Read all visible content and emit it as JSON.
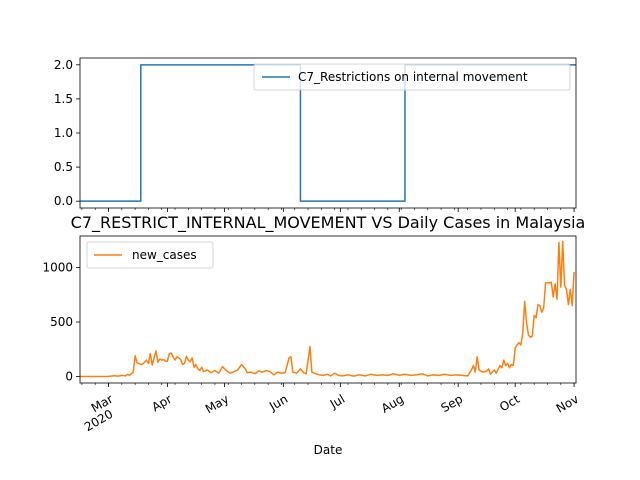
{
  "chart_data": [
    {
      "type": "line",
      "title": "",
      "xlabel": "",
      "ylabel": "",
      "x_range": [
        "2020-02-15",
        "2020-11-02"
      ],
      "ylim": [
        -0.1,
        2.1
      ],
      "yticks": [
        "0.0",
        "0.5",
        "1.0",
        "1.5",
        "2.0"
      ],
      "legend": "top-right",
      "grid": false,
      "series": [
        {
          "name": "C7_Restrictions on internal movement",
          "color": "#1f77b4",
          "points": [
            [
              "2020-02-15",
              0
            ],
            [
              "2020-03-18",
              0
            ],
            [
              "2020-03-18",
              2
            ],
            [
              "2020-06-10",
              2
            ],
            [
              "2020-06-10",
              0
            ],
            [
              "2020-08-04",
              0
            ],
            [
              "2020-08-04",
              2
            ],
            [
              "2020-11-02",
              2
            ]
          ]
        }
      ]
    },
    {
      "type": "line",
      "title": "C7_RESTRICT_INTERNAL_MOVEMENT VS Daily Cases in Malaysia",
      "xlabel": "Date",
      "ylabel": "",
      "x_range": [
        "2020-02-15",
        "2020-11-02"
      ],
      "ylim": [
        -60,
        1290
      ],
      "yticks": [
        "0",
        "500",
        "1000"
      ],
      "xticks": [
        {
          "date": "2020-03-01",
          "label": "Mar",
          "label2": "2020"
        },
        {
          "date": "2020-04-01",
          "label": "Apr"
        },
        {
          "date": "2020-05-01",
          "label": "May"
        },
        {
          "date": "2020-06-01",
          "label": "Jun"
        },
        {
          "date": "2020-07-01",
          "label": "Jul"
        },
        {
          "date": "2020-08-01",
          "label": "Aug"
        },
        {
          "date": "2020-09-01",
          "label": "Sep"
        },
        {
          "date": "2020-10-01",
          "label": "Oct"
        },
        {
          "date": "2020-11-01",
          "label": "Nov"
        }
      ],
      "legend": "top-left",
      "grid": false,
      "series": [
        {
          "name": "new_cases",
          "color": "#ff7f0e",
          "points": [
            [
              "2020-02-15",
              0
            ],
            [
              "2020-02-25",
              0
            ],
            [
              "2020-03-01",
              1
            ],
            [
              "2020-03-04",
              7
            ],
            [
              "2020-03-06",
              3
            ],
            [
              "2020-03-08",
              10
            ],
            [
              "2020-03-10",
              5
            ],
            [
              "2020-03-11",
              20
            ],
            [
              "2020-03-12",
              10
            ],
            [
              "2020-03-13",
              25
            ],
            [
              "2020-03-14",
              40
            ],
            [
              "2020-03-15",
              190
            ],
            [
              "2020-03-16",
              125
            ],
            [
              "2020-03-17",
              120
            ],
            [
              "2020-03-18",
              110
            ],
            [
              "2020-03-19",
              115
            ],
            [
              "2020-03-20",
              130
            ],
            [
              "2020-03-21",
              150
            ],
            [
              "2020-03-22",
              120
            ],
            [
              "2020-03-23",
              210
            ],
            [
              "2020-03-24",
              105
            ],
            [
              "2020-03-25",
              170
            ],
            [
              "2020-03-26",
              235
            ],
            [
              "2020-03-27",
              130
            ],
            [
              "2020-03-28",
              160
            ],
            [
              "2020-03-29",
              150
            ],
            [
              "2020-03-30",
              155
            ],
            [
              "2020-03-31",
              140
            ],
            [
              "2020-04-01",
              140
            ],
            [
              "2020-04-02",
              210
            ],
            [
              "2020-04-03",
              215
            ],
            [
              "2020-04-04",
              180
            ],
            [
              "2020-04-05",
              150
            ],
            [
              "2020-04-06",
              180
            ],
            [
              "2020-04-07",
              170
            ],
            [
              "2020-04-08",
              155
            ],
            [
              "2020-04-09",
              110
            ],
            [
              "2020-04-10",
              120
            ],
            [
              "2020-04-11",
              185
            ],
            [
              "2020-04-12",
              150
            ],
            [
              "2020-04-13",
              135
            ],
            [
              "2020-04-14",
              170
            ],
            [
              "2020-04-15",
              85
            ],
            [
              "2020-04-16",
              110
            ],
            [
              "2020-04-17",
              70
            ],
            [
              "2020-04-18",
              55
            ],
            [
              "2020-04-19",
              85
            ],
            [
              "2020-04-20",
              45
            ],
            [
              "2020-04-22",
              60
            ],
            [
              "2020-04-24",
              35
            ],
            [
              "2020-04-26",
              55
            ],
            [
              "2020-04-28",
              30
            ],
            [
              "2020-04-30",
              90
            ],
            [
              "2020-05-02",
              55
            ],
            [
              "2020-05-04",
              30
            ],
            [
              "2020-05-06",
              45
            ],
            [
              "2020-05-08",
              60
            ],
            [
              "2020-05-10",
              110
            ],
            [
              "2020-05-12",
              70
            ],
            [
              "2020-05-13",
              35
            ],
            [
              "2020-05-15",
              40
            ],
            [
              "2020-05-17",
              25
            ],
            [
              "2020-05-19",
              50
            ],
            [
              "2020-05-21",
              40
            ],
            [
              "2020-05-23",
              55
            ],
            [
              "2020-05-25",
              45
            ],
            [
              "2020-05-27",
              15
            ],
            [
              "2020-05-29",
              40
            ],
            [
              "2020-05-31",
              30
            ],
            [
              "2020-06-02",
              35
            ],
            [
              "2020-06-04",
              170
            ],
            [
              "2020-06-05",
              180
            ],
            [
              "2020-06-06",
              40
            ],
            [
              "2020-06-08",
              30
            ],
            [
              "2020-06-10",
              70
            ],
            [
              "2020-06-12",
              30
            ],
            [
              "2020-06-13",
              25
            ],
            [
              "2020-06-15",
              275
            ],
            [
              "2020-06-16",
              40
            ],
            [
              "2020-06-18",
              25
            ],
            [
              "2020-06-20",
              15
            ],
            [
              "2020-06-22",
              10
            ],
            [
              "2020-06-24",
              20
            ],
            [
              "2020-06-26",
              5
            ],
            [
              "2020-06-28",
              30
            ],
            [
              "2020-06-30",
              10
            ],
            [
              "2020-07-02",
              5
            ],
            [
              "2020-07-05",
              15
            ],
            [
              "2020-07-08",
              3
            ],
            [
              "2020-07-11",
              15
            ],
            [
              "2020-07-14",
              5
            ],
            [
              "2020-07-17",
              20
            ],
            [
              "2020-07-20",
              10
            ],
            [
              "2020-07-23",
              15
            ],
            [
              "2020-07-26",
              10
            ],
            [
              "2020-07-29",
              25
            ],
            [
              "2020-08-01",
              10
            ],
            [
              "2020-08-04",
              20
            ],
            [
              "2020-08-07",
              10
            ],
            [
              "2020-08-10",
              15
            ],
            [
              "2020-08-13",
              25
            ],
            [
              "2020-08-16",
              5
            ],
            [
              "2020-08-19",
              15
            ],
            [
              "2020-08-22",
              10
            ],
            [
              "2020-08-25",
              20
            ],
            [
              "2020-08-28",
              10
            ],
            [
              "2020-08-31",
              15
            ],
            [
              "2020-09-03",
              10
            ],
            [
              "2020-09-06",
              5
            ],
            [
              "2020-09-08",
              60
            ],
            [
              "2020-09-09",
              100
            ],
            [
              "2020-09-10",
              40
            ],
            [
              "2020-09-11",
              180
            ],
            [
              "2020-09-12",
              60
            ],
            [
              "2020-09-14",
              40
            ],
            [
              "2020-09-16",
              50
            ],
            [
              "2020-09-17",
              70
            ],
            [
              "2020-09-18",
              20
            ],
            [
              "2020-09-20",
              60
            ],
            [
              "2020-09-21",
              30
            ],
            [
              "2020-09-23",
              100
            ],
            [
              "2020-09-24",
              80
            ],
            [
              "2020-09-25",
              150
            ],
            [
              "2020-09-26",
              100
            ],
            [
              "2020-09-27",
              120
            ],
            [
              "2020-09-28",
              80
            ],
            [
              "2020-09-29",
              110
            ],
            [
              "2020-09-30",
              100
            ],
            [
              "2020-10-01",
              260
            ],
            [
              "2020-10-02",
              290
            ],
            [
              "2020-10-03",
              310
            ],
            [
              "2020-10-04",
              290
            ],
            [
              "2020-10-05",
              400
            ],
            [
              "2020-10-06",
              690
            ],
            [
              "2020-10-07",
              490
            ],
            [
              "2020-10-08",
              380
            ],
            [
              "2020-10-09",
              360
            ],
            [
              "2020-10-10",
              370
            ],
            [
              "2020-10-11",
              560
            ],
            [
              "2020-10-12",
              540
            ],
            [
              "2020-10-13",
              660
            ],
            [
              "2020-10-14",
              650
            ],
            [
              "2020-10-15",
              590
            ],
            [
              "2020-10-16",
              630
            ],
            [
              "2020-10-17",
              860
            ],
            [
              "2020-10-19",
              860
            ],
            [
              "2020-10-20",
              865
            ],
            [
              "2020-10-21",
              730
            ],
            [
              "2020-10-22",
              850
            ],
            [
              "2020-10-23",
              710
            ],
            [
              "2020-10-24",
              1230
            ],
            [
              "2020-10-25",
              820
            ],
            [
              "2020-10-26",
              1240
            ],
            [
              "2020-10-27",
              835
            ],
            [
              "2020-10-28",
              800
            ],
            [
              "2020-10-29",
              660
            ],
            [
              "2020-10-30",
              800
            ],
            [
              "2020-10-31",
              650
            ],
            [
              "2020-11-01",
              960
            ]
          ]
        }
      ]
    }
  ]
}
